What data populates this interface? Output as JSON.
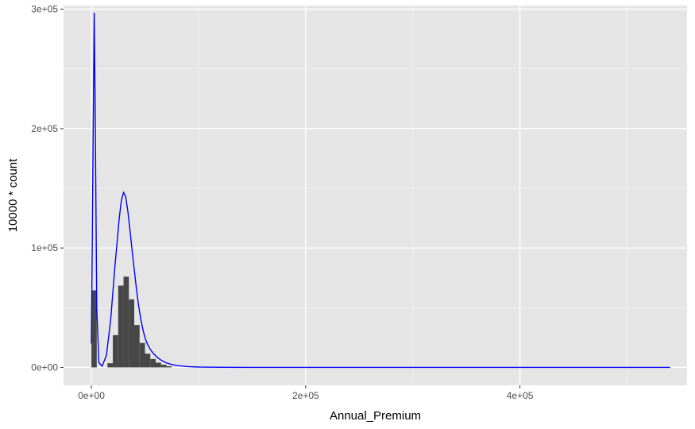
{
  "chart_data": {
    "type": "bar",
    "xlabel": "Annual_Premium",
    "ylabel": "10000 * count",
    "xlim": [
      -26000,
      556000
    ],
    "ylim": [
      -15000,
      303000
    ],
    "x_ticks": [
      {
        "value": 0,
        "label": "0e+00"
      },
      {
        "value": 200000,
        "label": "2e+05"
      },
      {
        "value": 400000,
        "label": "4e+05"
      }
    ],
    "y_ticks": [
      {
        "value": 0,
        "label": "0e+00"
      },
      {
        "value": 100000,
        "label": "1e+05"
      },
      {
        "value": 200000,
        "label": "2e+05"
      },
      {
        "value": 300000,
        "label": "3e+05"
      }
    ],
    "grid": true,
    "bin_width": 5000,
    "histogram": {
      "name": "count",
      "color": "#474747",
      "bins": [
        {
          "x": 0,
          "value": 64500
        },
        {
          "x": 15000,
          "value": 3500
        },
        {
          "x": 20000,
          "value": 27000
        },
        {
          "x": 25000,
          "value": 68500
        },
        {
          "x": 30000,
          "value": 76000
        },
        {
          "x": 35000,
          "value": 57000
        },
        {
          "x": 40000,
          "value": 35500
        },
        {
          "x": 45000,
          "value": 20500
        },
        {
          "x": 50000,
          "value": 11500
        },
        {
          "x": 55000,
          "value": 7000
        },
        {
          "x": 60000,
          "value": 4000
        },
        {
          "x": 65000,
          "value": 2200
        },
        {
          "x": 70000,
          "value": 1000
        }
      ]
    },
    "density": {
      "name": "density",
      "color": "#0000ff",
      "x": [
        0,
        1500,
        2630,
        3500,
        5000,
        7000,
        10000,
        14000,
        18000,
        22000,
        26000,
        28000,
        30000,
        32000,
        34000,
        36000,
        38000,
        40000,
        42000,
        44000,
        46000,
        48000,
        50000,
        52000,
        55000,
        58000,
        62000,
        66000,
        70000,
        75000,
        80000,
        90000,
        100000,
        120000,
        150000,
        200000,
        300000,
        400000,
        540165
      ],
      "y": [
        20000,
        180000,
        297000,
        220000,
        50000,
        4000,
        1000,
        10000,
        40000,
        85000,
        125000,
        140000,
        146500,
        143000,
        131000,
        115000,
        98000,
        82000,
        66000,
        52000,
        41000,
        32000,
        25000,
        20000,
        15000,
        11500,
        8000,
        5500,
        3800,
        2400,
        1500,
        700,
        300,
        100,
        20,
        0,
        0,
        0,
        0
      ]
    }
  }
}
